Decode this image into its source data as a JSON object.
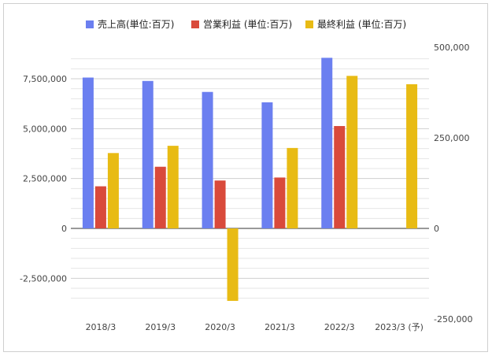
{
  "chart_data": {
    "type": "bar",
    "title": "",
    "categories": [
      "2018/3",
      "2019/3",
      "2020/3",
      "2021/3",
      "2022/3",
      "2023/3 (予)"
    ],
    "series": [
      {
        "name": "売上高(単位:百万)",
        "axis": "left",
        "color": "#6b7ff0",
        "values": [
          7560000,
          7390000,
          6840000,
          6320000,
          8550000,
          null
        ]
      },
      {
        "name": "営業利益 (単位:百万)",
        "axis": "left",
        "color": "#d94a3b",
        "values": [
          2110000,
          3090000,
          2400000,
          2550000,
          5130000,
          null
        ]
      },
      {
        "name": "最終利益 (単位:百万)",
        "axis": "right",
        "color": "#e8bb14",
        "values": [
          208000,
          228000,
          -200000,
          222000,
          421000,
          398000
        ]
      }
    ],
    "left_axis": {
      "min": -4000000,
      "max": 8500000,
      "ticks": [
        -2500000,
        0,
        2500000,
        5000000,
        7500000
      ],
      "tick_labels": [
        "-2,500,000",
        "0",
        "2,500,000",
        "5,000,000",
        "7,500,000"
      ]
    },
    "right_axis": {
      "min": -235000,
      "max": 500000,
      "ticks": [
        -250000,
        0,
        250000,
        500000
      ],
      "tick_labels": [
        "-250,000",
        "0",
        "250,000",
        "500,000"
      ]
    },
    "grid": true,
    "legend_position": "top"
  }
}
